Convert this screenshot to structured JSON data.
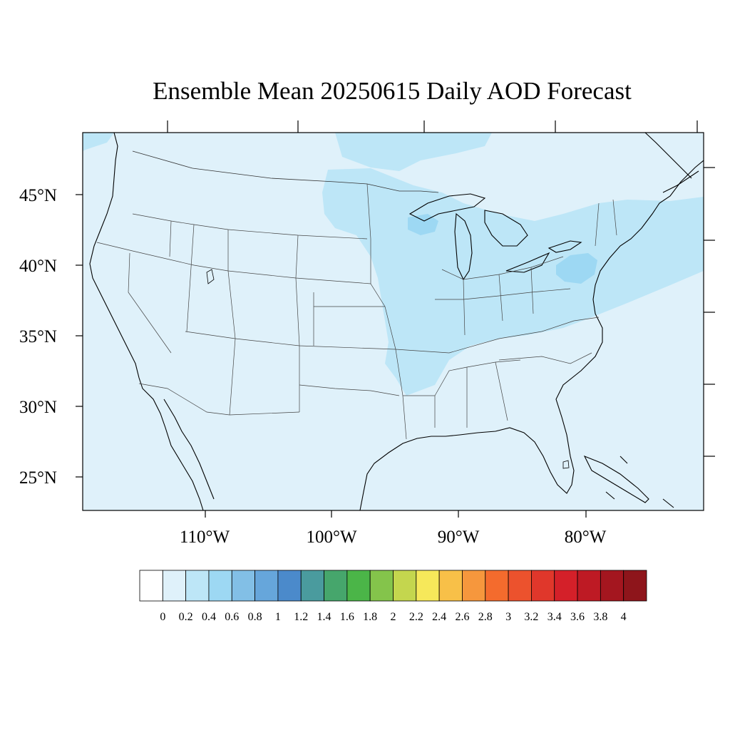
{
  "title": "Ensemble Mean 20250615 Daily AOD Forecast",
  "lat_labels": [
    "45°N",
    "40°N",
    "35°N",
    "30°N",
    "25°N"
  ],
  "lon_labels": [
    "110°W",
    "100°W",
    "90°W",
    "80°W"
  ],
  "colorbar": {
    "labels": [
      "0",
      "0.2",
      "0.4",
      "0.6",
      "0.8",
      "1",
      "1.2",
      "1.4",
      "1.6",
      "1.8",
      "2",
      "2.2",
      "2.4",
      "2.6",
      "2.8",
      "3",
      "3.2",
      "3.4",
      "3.6",
      "3.8",
      "4"
    ],
    "colors": [
      "#ffffff",
      "#dff1fa",
      "#bde6f7",
      "#9dd8f3",
      "#82bfe6",
      "#66a6db",
      "#4b8acb",
      "#4a9b9e",
      "#46a66c",
      "#4bb548",
      "#84c44b",
      "#c4d64e",
      "#f6e85a",
      "#f8c048",
      "#f6973d",
      "#f46b2d",
      "#ec522d",
      "#e0372b",
      "#d42029",
      "#be1a24",
      "#a4161f",
      "#8e151b"
    ]
  },
  "map": {
    "background_value_color": "#dff1fa",
    "enhanced_region_color": "#bde6f7",
    "peak_region_color": "#9dd8f3"
  }
}
